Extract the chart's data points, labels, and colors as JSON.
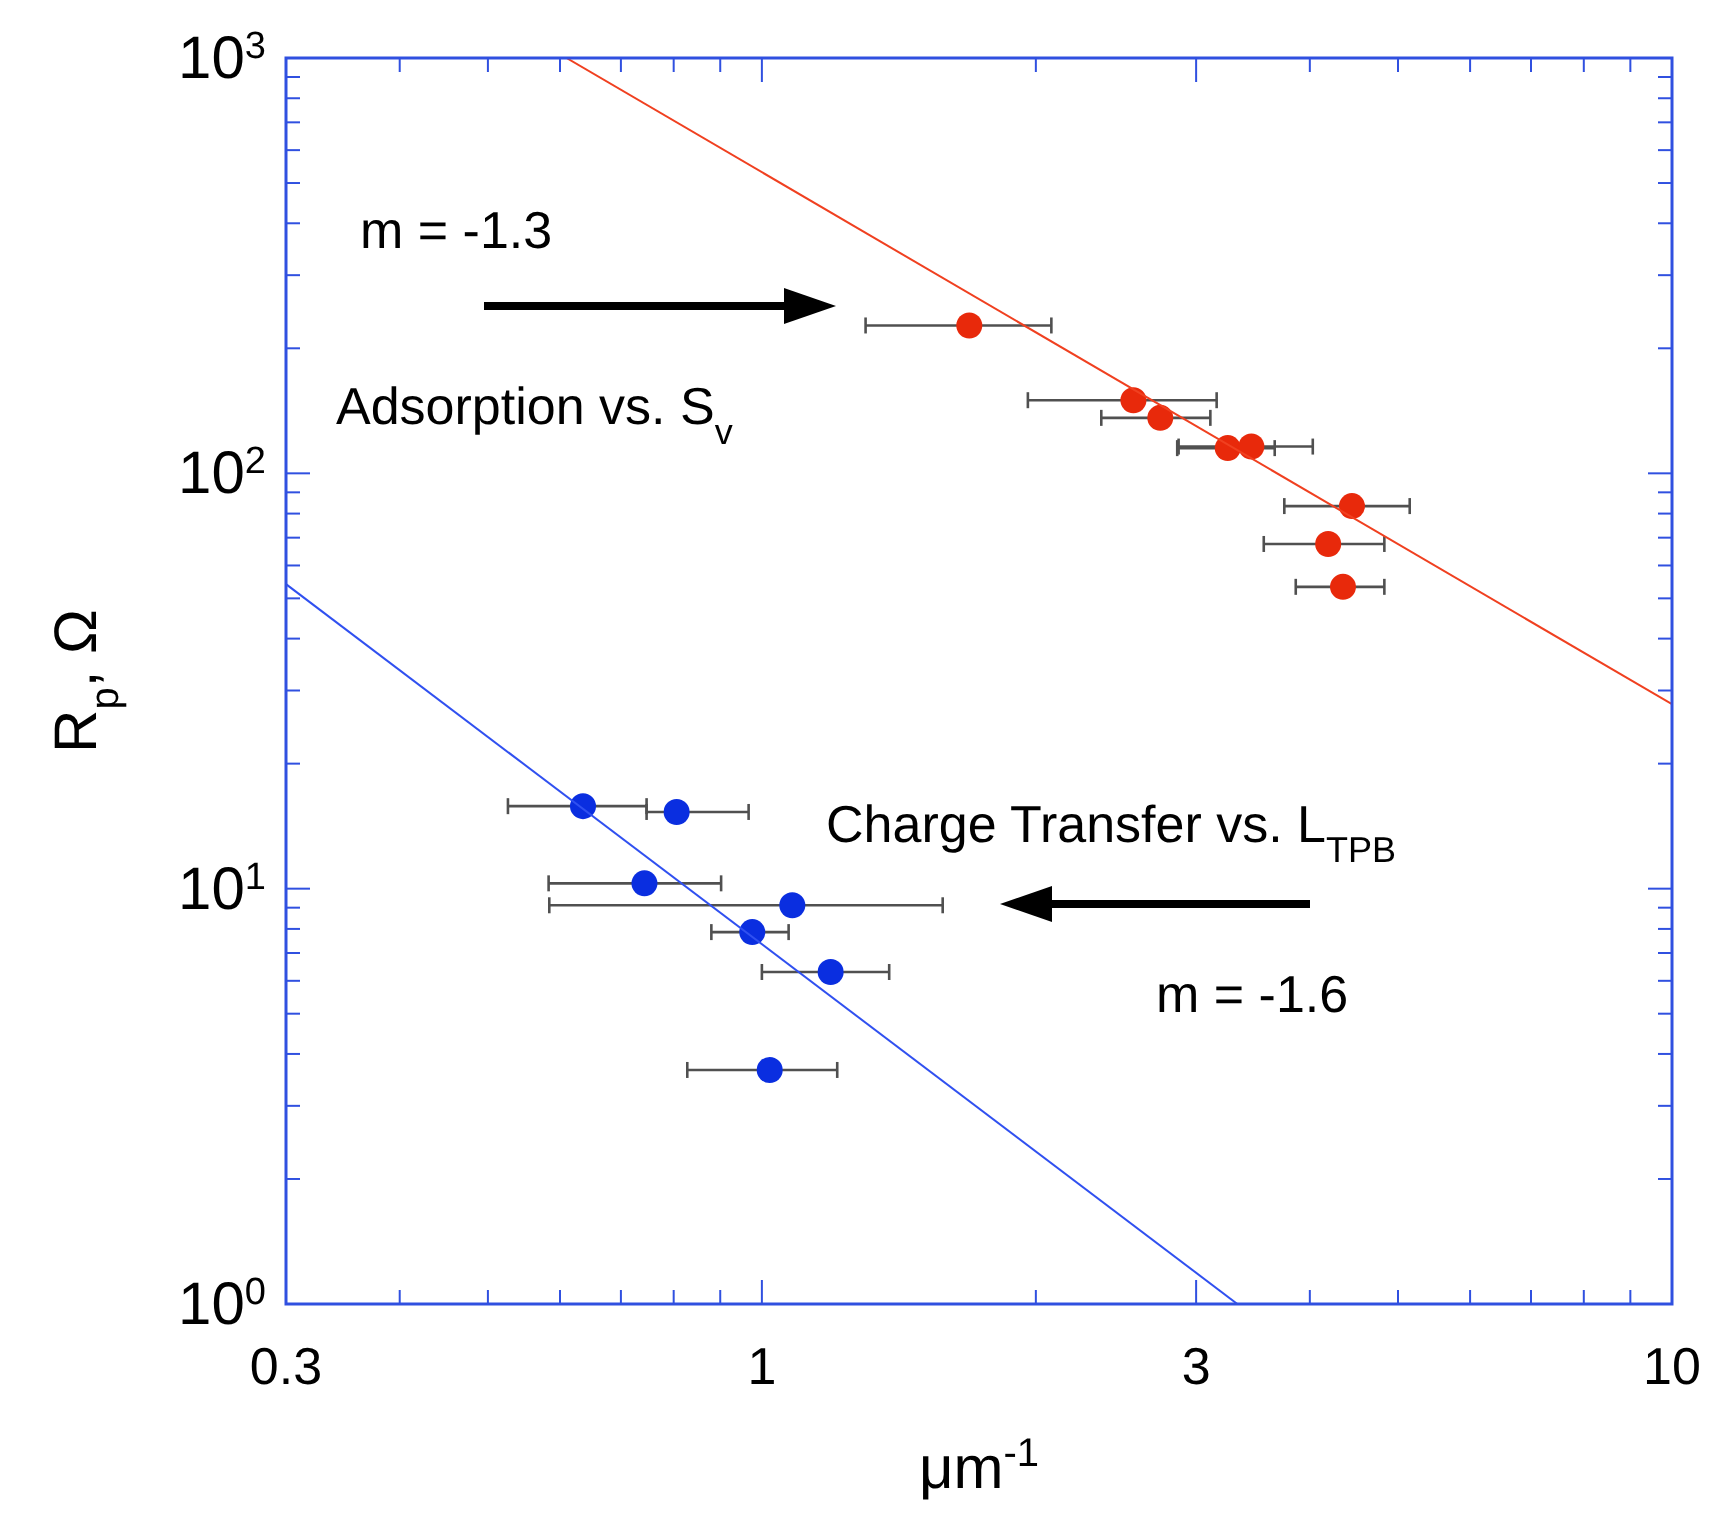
{
  "chart_data": {
    "type": "scatter",
    "xlabel": "μm$^{-1}$",
    "ylabel": "R$_{p}$, Ω",
    "log": "xy",
    "grid": false,
    "xlim": [
      0.3,
      10
    ],
    "ylim": [
      1,
      1000
    ],
    "xticks": [
      0.3,
      {
        "value": 0.4,
        "label": null
      },
      {
        "value": 0.5,
        "label": null
      },
      {
        "value": 0.6,
        "label": null
      },
      {
        "value": 0.7,
        "label": null
      },
      {
        "value": 0.8,
        "label": null
      },
      {
        "value": 0.9,
        "label": null
      },
      1,
      {
        "value": 2,
        "label": null
      },
      3,
      {
        "value": 4,
        "label": null
      },
      {
        "value": 5,
        "label": null
      },
      {
        "value": 6,
        "label": null
      },
      {
        "value": 7,
        "label": null
      },
      {
        "value": 8,
        "label": null
      },
      {
        "value": 9,
        "label": null
      },
      10
    ],
    "yticks": [
      {
        "value": 1,
        "label": "10$^{0}$"
      },
      {
        "value": 2,
        "label": null
      },
      {
        "value": 3,
        "label": null
      },
      {
        "value": 4,
        "label": null
      },
      {
        "value": 5,
        "label": null
      },
      {
        "value": 6,
        "label": null
      },
      {
        "value": 7,
        "label": null
      },
      {
        "value": 8,
        "label": null
      },
      {
        "value": 9,
        "label": null
      },
      {
        "value": 10,
        "label": "10$^{1}$"
      },
      {
        "value": 20,
        "label": null
      },
      {
        "value": 30,
        "label": null
      },
      {
        "value": 40,
        "label": null
      },
      {
        "value": 50,
        "label": null
      },
      {
        "value": 60,
        "label": null
      },
      {
        "value": 70,
        "label": null
      },
      {
        "value": 80,
        "label": null
      },
      {
        "value": 90,
        "label": null
      },
      {
        "value": 100,
        "label": "10$^{2}$"
      },
      {
        "value": 200,
        "label": null
      },
      {
        "value": 300,
        "label": null
      },
      {
        "value": 400,
        "label": null
      },
      {
        "value": 500,
        "label": null
      },
      {
        "value": 600,
        "label": null
      },
      {
        "value": 700,
        "label": null
      },
      {
        "value": 800,
        "label": null
      },
      {
        "value": 900,
        "label": null
      },
      {
        "value": 1000,
        "label": "10$^{3}$"
      }
    ],
    "series": [
      {
        "marker": "circle",
        "color": "#e8290b",
        "x": [
          1.69,
          2.56,
          2.74,
          3.25,
          3.45,
          4.45,
          4.19,
          4.35
        ],
        "values": [
          227,
          150,
          136,
          115,
          116,
          83.4,
          67.6,
          53.3
        ],
        "xerrors": [
          [
            1.3,
            2.08
          ],
          [
            1.96,
            3.16
          ],
          [
            2.36,
            3.11
          ],
          [
            2.86,
            3.66
          ],
          [
            2.87,
            4.03
          ],
          [
            3.75,
            5.15
          ],
          [
            3.56,
            4.83
          ],
          [
            3.86,
            4.83
          ]
        ]
      },
      {
        "marker": "circle",
        "color": "#0a2ee0",
        "x": [
          0.636,
          0.806,
          0.743,
          1.08,
          0.976,
          1.19,
          1.02
        ],
        "values": [
          15.8,
          15.3,
          10.3,
          9.12,
          7.86,
          6.3,
          3.66
        ],
        "xerrors": [
          [
            0.526,
            0.747
          ],
          [
            0.747,
            0.967
          ],
          [
            0.583,
            0.902
          ],
          [
            0.584,
            1.58
          ],
          [
            0.88,
            1.07
          ],
          [
            1.0,
            1.38
          ],
          [
            0.828,
            1.21
          ]
        ]
      },
      {
        "type": "line",
        "color": "#f04020",
        "x": [
          0.61,
          10
        ],
        "values": [
          1000,
          27.8
        ]
      },
      {
        "type": "line",
        "color": "#3050f0",
        "x": [
          0.3,
          3.33
        ],
        "values": [
          54.1,
          1
        ]
      }
    ],
    "annotations": [
      "m = -1.3",
      "Adsorption vs. S$_{v}$",
      "Charge Transfer vs. L$_{TPB}$",
      "m = -1.6"
    ]
  }
}
